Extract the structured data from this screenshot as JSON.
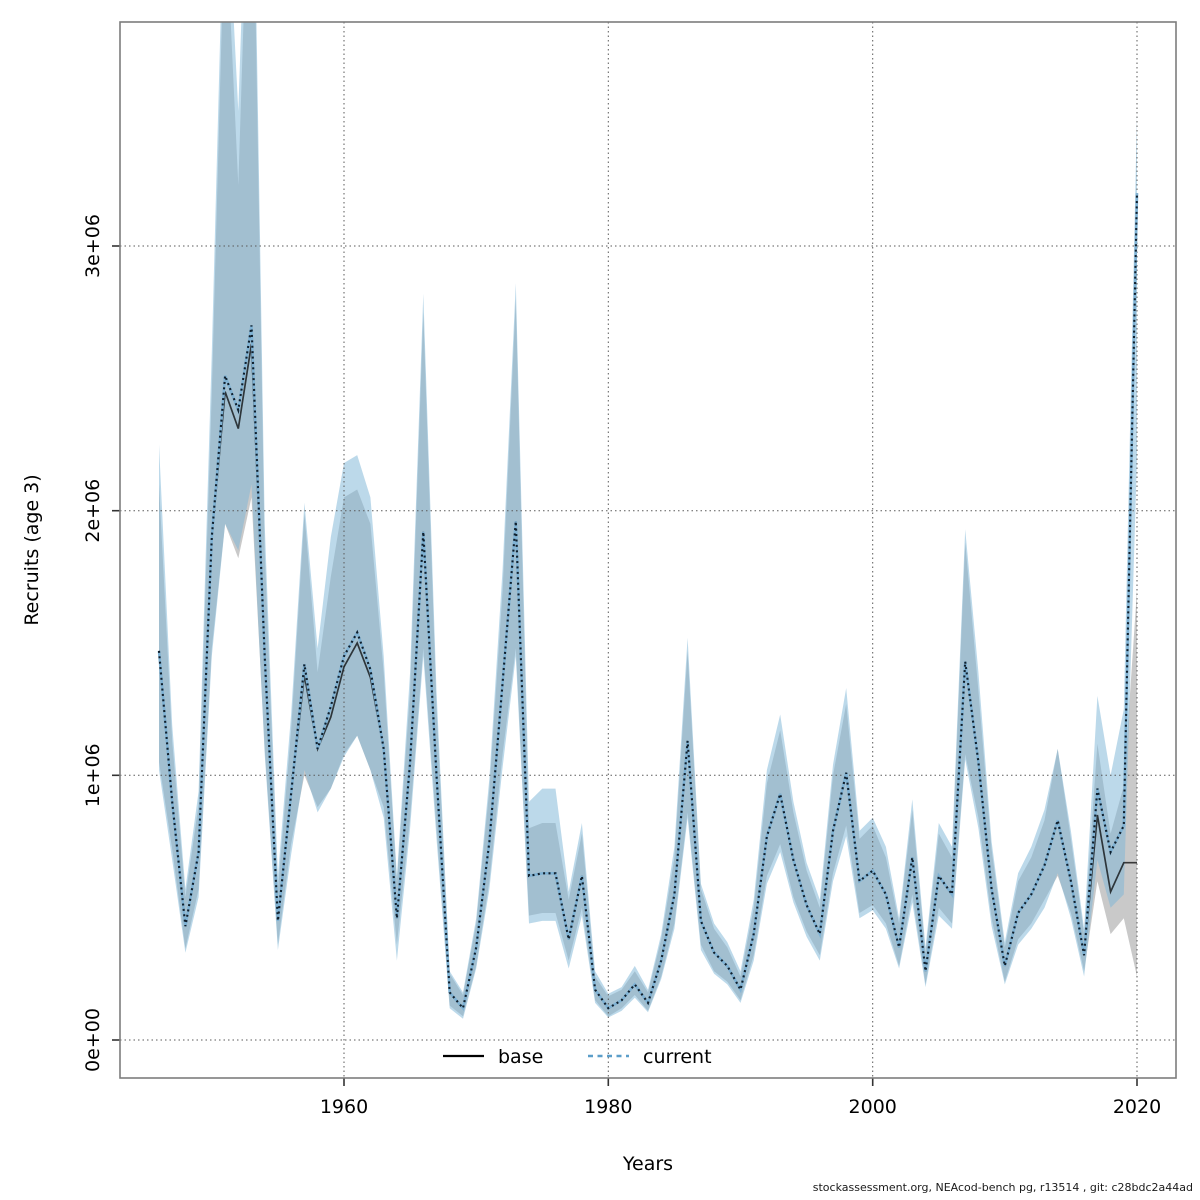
{
  "figure": {
    "footer": "stockassessment.org, NEAcod-bench  pg, r13514 , git: c28bdc2a44ad"
  },
  "chart_data": {
    "type": "line",
    "title": "",
    "xlabel": "Years",
    "ylabel": "Recruits (age 3)",
    "units": "recruits, values in millions (axis shown as scientific notation)",
    "grid": "dotted",
    "legend_position": "bottom-center-inside",
    "xlim": [
      1942.9,
      2023.1
    ],
    "ylim": [
      0,
      3.85
    ],
    "x_ticks": {
      "values": [
        1960,
        1980,
        2000,
        2020
      ],
      "labels": [
        "1960",
        "1980",
        "2000",
        "2020"
      ]
    },
    "y_ticks": {
      "values": [
        0,
        1,
        2,
        3
      ],
      "labels": [
        "0e+00",
        "1e+06",
        "2e+06",
        "3e+06"
      ]
    },
    "years": [
      1946,
      1947,
      1948,
      1949,
      1950,
      1951,
      1952,
      1953,
      1954,
      1955,
      1956,
      1957,
      1958,
      1959,
      1960,
      1961,
      1962,
      1963,
      1964,
      1965,
      1966,
      1967,
      1968,
      1969,
      1970,
      1971,
      1972,
      1973,
      1974,
      1975,
      1976,
      1977,
      1978,
      1979,
      1980,
      1981,
      1982,
      1983,
      1984,
      1985,
      1986,
      1987,
      1988,
      1989,
      1990,
      1991,
      1992,
      1993,
      1994,
      1995,
      1996,
      1997,
      1998,
      1999,
      2000,
      2001,
      2002,
      2003,
      2004,
      2005,
      2006,
      2007,
      2008,
      2009,
      2010,
      2011,
      2012,
      2013,
      2014,
      2015,
      2016,
      2017,
      2018,
      2019,
      2020
    ],
    "series": [
      {
        "name": "base",
        "color": "#000000",
        "line_style": "solid",
        "band_color": "#c9c9c9",
        "values": [
          1.47,
          0.9,
          0.43,
          0.71,
          1.9,
          2.45,
          2.31,
          2.63,
          1.45,
          0.45,
          0.93,
          1.38,
          1.1,
          1.22,
          1.41,
          1.5,
          1.37,
          1.1,
          0.46,
          1.05,
          1.92,
          1,
          0.18,
          0.12,
          0.35,
          0.75,
          1.35,
          1.96,
          0.62,
          0.63,
          0.63,
          0.38,
          0.62,
          0.19,
          0.12,
          0.15,
          0.21,
          0.14,
          0.3,
          0.55,
          1.13,
          0.45,
          0.33,
          0.28,
          0.19,
          0.4,
          0.77,
          0.93,
          0.68,
          0.51,
          0.4,
          0.79,
          1.01,
          0.6,
          0.64,
          0.55,
          0.35,
          0.69,
          0.26,
          0.62,
          0.55,
          1.43,
          1.05,
          0.57,
          0.28,
          0.48,
          0.55,
          0.66,
          0.83,
          0.6,
          0.32,
          0.85,
          0.56,
          0.67,
          0.67
        ],
        "lower": [
          1.05,
          0.72,
          0.345,
          0.57,
          1.48,
          1.95,
          1.82,
          2.05,
          1.1,
          0.36,
          0.74,
          1,
          0.88,
          0.95,
          1.08,
          1.15,
          1.02,
          0.88,
          0.36,
          0.84,
          1.48,
          0.8,
          0.13,
          0.09,
          0.28,
          0.6,
          1.08,
          1.48,
          0.47,
          0.48,
          0.48,
          0.3,
          0.5,
          0.15,
          0.09,
          0.12,
          0.17,
          0.11,
          0.24,
          0.44,
          0.86,
          0.36,
          0.26,
          0.22,
          0.15,
          0.32,
          0.62,
          0.74,
          0.54,
          0.41,
          0.32,
          0.63,
          0.81,
          0.48,
          0.51,
          0.44,
          0.28,
          0.55,
          0.21,
          0.5,
          0.44,
          1.08,
          0.84,
          0.46,
          0.22,
          0.38,
          0.44,
          0.53,
          0.62,
          0.48,
          0.26,
          0.6,
          0.4,
          0.46,
          0.24
        ],
        "upper": [
          2.1,
          1.13,
          0.54,
          0.89,
          2.45,
          4.3,
          3.23,
          4.8,
          1.85,
          0.57,
          1.17,
          1.99,
          1.39,
          1.75,
          2.05,
          2.08,
          1.95,
          1.39,
          0.6,
          1.32,
          2.75,
          1.26,
          0.25,
          0.17,
          0.44,
          0.95,
          1.7,
          2.8,
          0.8,
          0.82,
          0.82,
          0.53,
          0.78,
          0.24,
          0.165,
          0.19,
          0.26,
          0.18,
          0.38,
          0.69,
          1.47,
          0.57,
          0.42,
          0.35,
          0.24,
          0.5,
          0.97,
          1.17,
          0.86,
          0.64,
          0.5,
          1,
          1.27,
          0.76,
          0.81,
          0.69,
          0.44,
          0.87,
          0.33,
          0.78,
          0.69,
          1.88,
          1.32,
          0.72,
          0.35,
          0.6,
          0.69,
          0.83,
          1.1,
          0.76,
          0.4,
          1.12,
          0.78,
          0.96,
          1.7
        ]
      },
      {
        "name": "current",
        "color": "#5b9ec9",
        "line_style": "dotted",
        "band_color": "rgba(126,182,215,0.52)",
        "values": [
          1.47,
          0.9,
          0.43,
          0.71,
          1.9,
          2.51,
          2.38,
          2.7,
          1.45,
          0.45,
          0.93,
          1.42,
          1.1,
          1.26,
          1.45,
          1.54,
          1.4,
          1.1,
          0.46,
          1.05,
          1.92,
          1,
          0.18,
          0.12,
          0.35,
          0.75,
          1.35,
          1.96,
          0.62,
          0.63,
          0.63,
          0.38,
          0.62,
          0.19,
          0.12,
          0.15,
          0.21,
          0.14,
          0.3,
          0.55,
          1.13,
          0.45,
          0.33,
          0.28,
          0.19,
          0.4,
          0.77,
          0.93,
          0.68,
          0.51,
          0.4,
          0.79,
          1.01,
          0.6,
          0.64,
          0.55,
          0.35,
          0.69,
          0.26,
          0.62,
          0.55,
          1.43,
          1.05,
          0.57,
          0.28,
          0.48,
          0.55,
          0.66,
          0.83,
          0.6,
          0.32,
          0.95,
          0.71,
          0.81,
          3.2
        ],
        "lower": [
          1.02,
          0.68,
          0.33,
          0.54,
          1.45,
          1.95,
          1.85,
          2.1,
          1.08,
          0.34,
          0.7,
          1.02,
          0.86,
          0.95,
          1.07,
          1.15,
          1.02,
          0.84,
          0.3,
          0.8,
          1.45,
          0.76,
          0.12,
          0.08,
          0.27,
          0.57,
          1.03,
          1.45,
          0.44,
          0.45,
          0.45,
          0.27,
          0.47,
          0.14,
          0.085,
          0.11,
          0.16,
          0.105,
          0.23,
          0.42,
          0.84,
          0.34,
          0.25,
          0.21,
          0.14,
          0.3,
          0.59,
          0.71,
          0.52,
          0.39,
          0.3,
          0.6,
          0.77,
          0.46,
          0.49,
          0.42,
          0.27,
          0.52,
          0.2,
          0.47,
          0.42,
          1.06,
          0.8,
          0.43,
          0.21,
          0.36,
          0.42,
          0.5,
          0.63,
          0.46,
          0.24,
          0.68,
          0.5,
          0.55,
          2.2
        ],
        "upper": [
          2.25,
          1.19,
          0.57,
          0.94,
          2.6,
          4.5,
          3.51,
          5,
          1.95,
          0.62,
          1.23,
          2.03,
          1.48,
          1.9,
          2.18,
          2.21,
          2.05,
          1.45,
          0.62,
          1.39,
          2.82,
          1.32,
          0.26,
          0.18,
          0.46,
          0.99,
          1.78,
          2.86,
          0.9,
          0.95,
          0.95,
          0.56,
          0.82,
          0.26,
          0.175,
          0.2,
          0.28,
          0.19,
          0.4,
          0.73,
          1.52,
          0.59,
          0.44,
          0.37,
          0.26,
          0.53,
          1.02,
          1.23,
          0.9,
          0.67,
          0.53,
          1.04,
          1.33,
          0.79,
          0.84,
          0.73,
          0.46,
          0.91,
          0.35,
          0.82,
          0.73,
          1.93,
          1.39,
          0.75,
          0.37,
          0.63,
          0.73,
          0.87,
          1.1,
          0.79,
          0.42,
          1.3,
          1,
          1.25,
          3.5
        ]
      }
    ],
    "legend": {
      "items": [
        {
          "label": "base"
        },
        {
          "label": "current"
        }
      ]
    }
  }
}
